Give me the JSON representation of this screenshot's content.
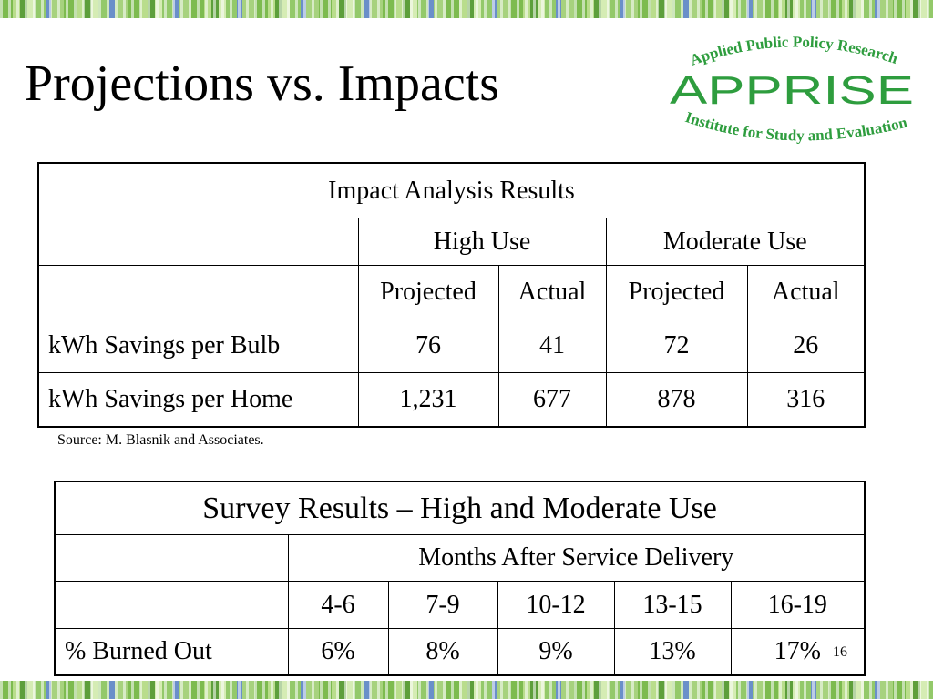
{
  "slide": {
    "title": "Projections vs. Impacts",
    "number": "16"
  },
  "logo": {
    "top_text": "Applied Public Policy Research",
    "main_text": "APPRISE",
    "bottom_text": "Institute for Study and Evaluation",
    "color": "#2e9d3e"
  },
  "impact_table": {
    "title": "Impact Analysis Results",
    "group_headers": [
      "High Use",
      "Moderate Use"
    ],
    "sub_headers": [
      "Projected",
      "Actual",
      "Projected",
      "Actual"
    ],
    "rows": [
      {
        "label": "kWh Savings per Bulb",
        "values": [
          "76",
          "41",
          "72",
          "26"
        ]
      },
      {
        "label": "kWh Savings per Home",
        "values": [
          "1,231",
          "677",
          "878",
          "316"
        ]
      }
    ]
  },
  "source_note": "Source: M. Blasnik and Associates.",
  "survey_table": {
    "title": "Survey Results – High and Moderate Use",
    "group_header": "Months After Service Delivery",
    "sub_headers": [
      "4-6",
      "7-9",
      "10-12",
      "13-15",
      "16-19"
    ],
    "rows": [
      {
        "label": "% Burned Out",
        "values": [
          "6%",
          "8%",
          "9%",
          "13%",
          "17%"
        ]
      }
    ]
  }
}
